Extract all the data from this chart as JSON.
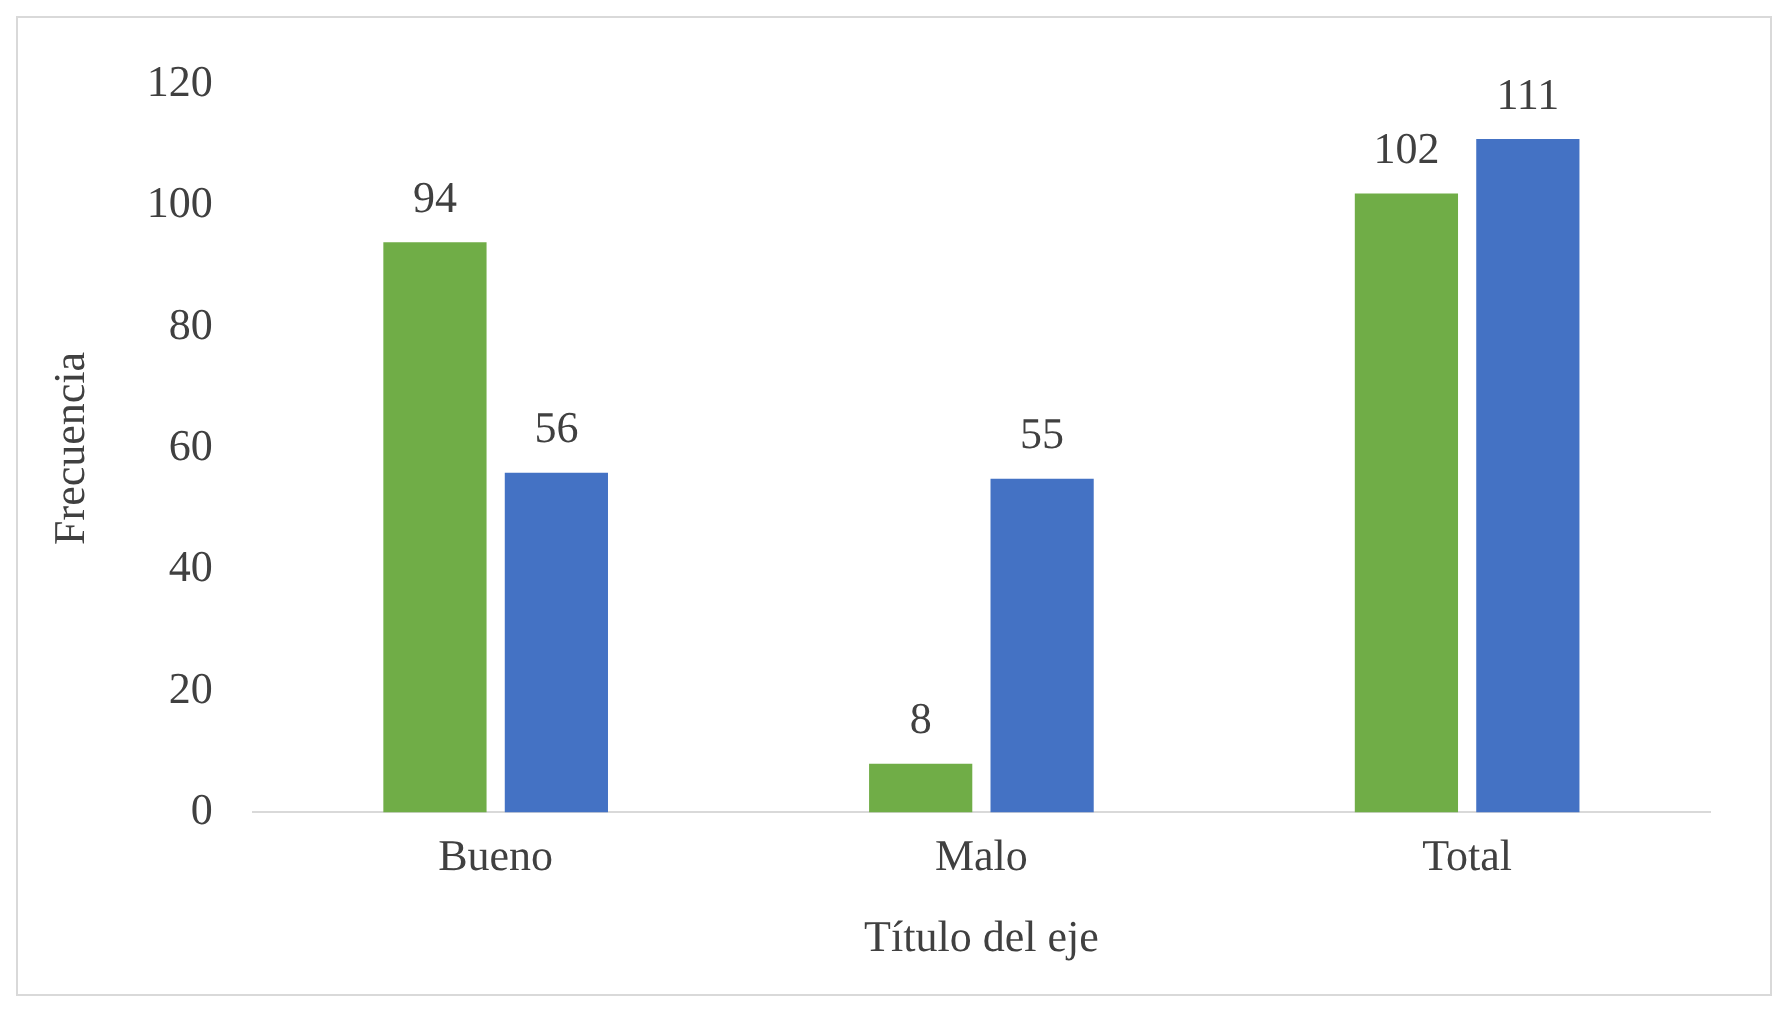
{
  "chart_data": {
    "type": "bar",
    "xlabel": "Título del eje",
    "ylabel": "Frecuencia",
    "categories": [
      "Bueno",
      "Malo",
      "Total"
    ],
    "series": [
      {
        "color": "#70ad47",
        "values": [
          94,
          8,
          102
        ]
      },
      {
        "color": "#4472c4",
        "values": [
          56,
          55,
          111
        ]
      }
    ],
    "ylim": [
      0,
      120
    ],
    "yticks": [
      0,
      20,
      40,
      60,
      80,
      100,
      120
    ],
    "grid": false,
    "legend": false,
    "data_labels": true
  }
}
